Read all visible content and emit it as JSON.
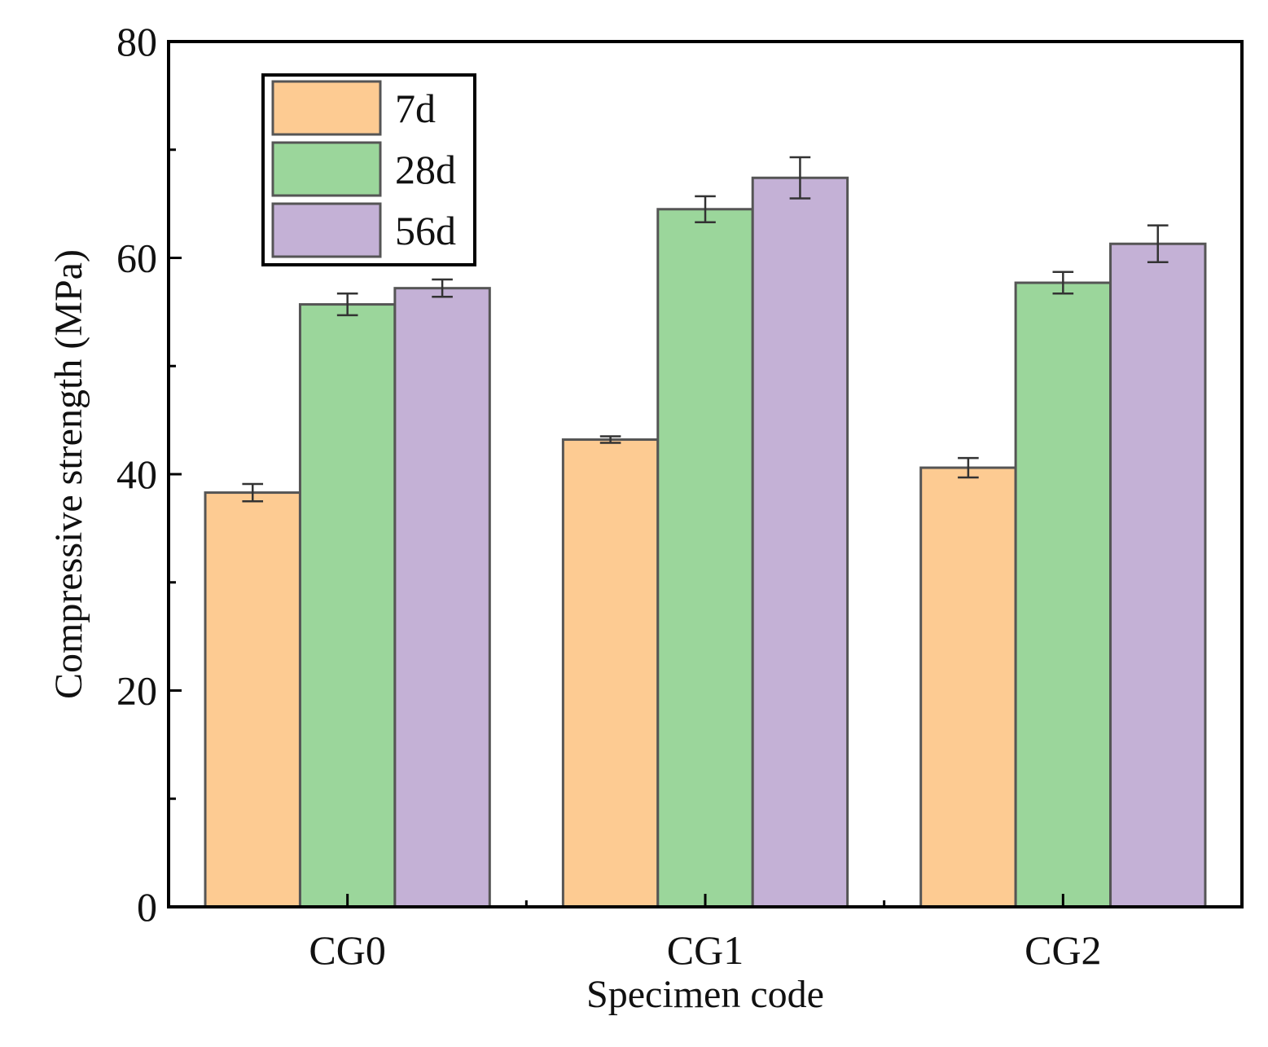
{
  "chart_data": {
    "type": "bar",
    "title": "",
    "xlabel": "Specimen code",
    "ylabel": "Compressive strength (MPa)",
    "ylim": [
      0,
      80
    ],
    "yticks": [
      "0",
      "20",
      "40",
      "60",
      "80"
    ],
    "categories": [
      "CG0",
      "CG1",
      "CG2"
    ],
    "series": [
      {
        "name": "7d",
        "color": "#FDCB92",
        "values": [
          38.3,
          43.2,
          40.6
        ],
        "errors": [
          0.8,
          0.3,
          0.9
        ]
      },
      {
        "name": "28d",
        "color": "#9BD69B",
        "values": [
          55.7,
          64.5,
          57.7
        ],
        "errors": [
          1.0,
          1.2,
          1.0
        ]
      },
      {
        "name": "56d",
        "color": "#C4B1D6",
        "values": [
          57.2,
          67.4,
          61.3
        ],
        "errors": [
          0.8,
          1.9,
          1.7
        ]
      }
    ],
    "legend_position": "top-left",
    "grid": false,
    "bar_outline_color": "#555555",
    "error_bar_color": "#333333"
  }
}
